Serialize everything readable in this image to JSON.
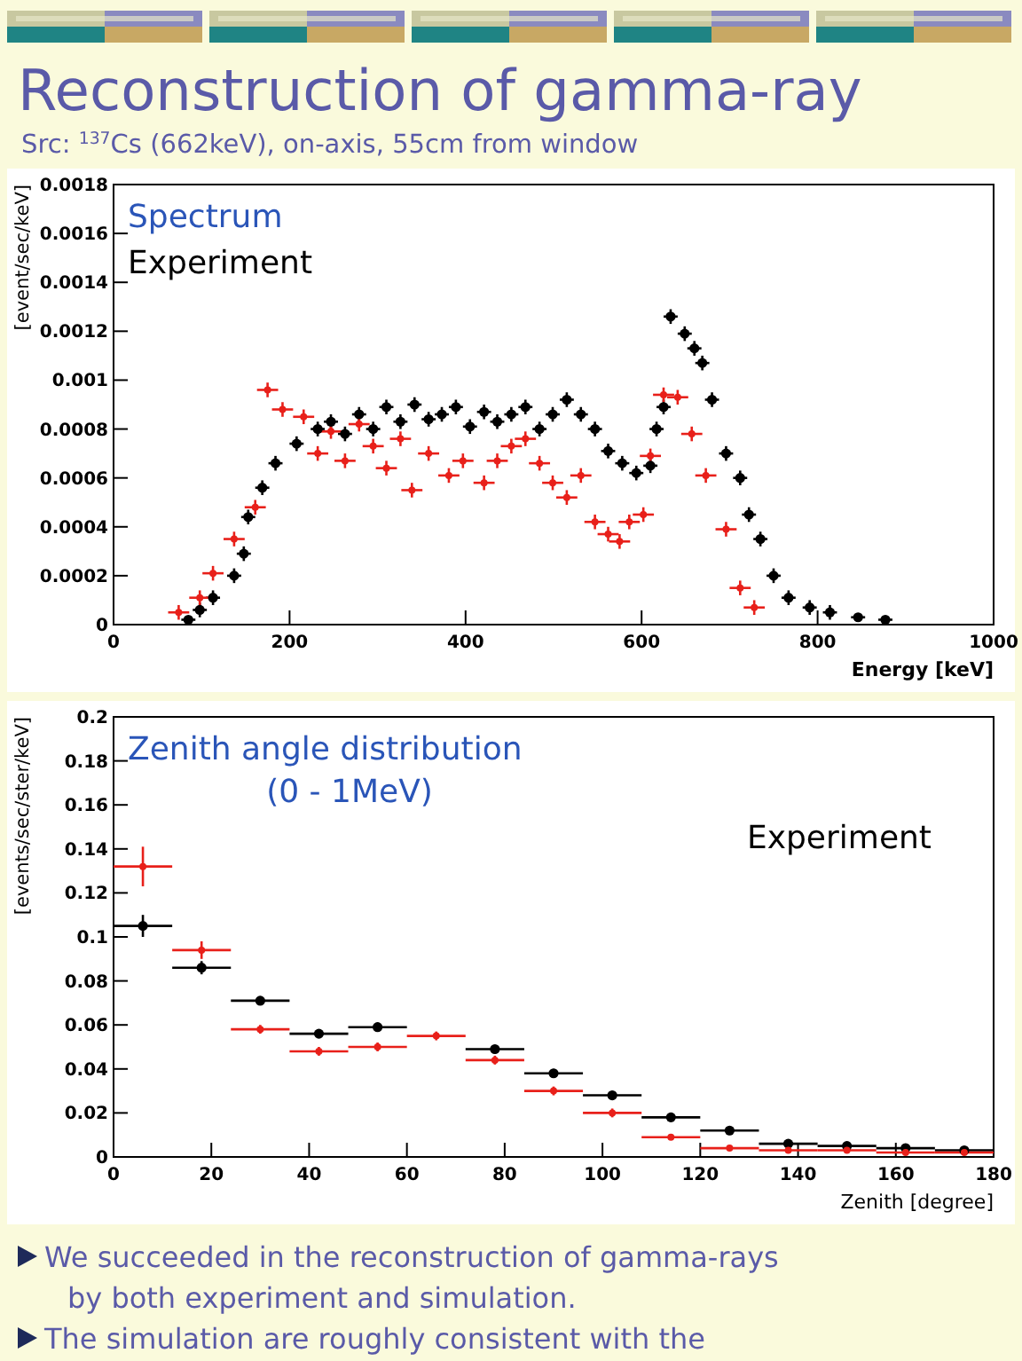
{
  "chart_data": [
    {
      "type": "other",
      "title": "Reconstruction of gamma-ray",
      "subtitle": "Src: $^{137}$Cs (662keV), on-axis, 55cm from window",
      "annotations": [
        "We succeeded in the reconstruction of gamma-rays by both experiment and simulation.",
        "The simulation are roughly consistent with the experiment."
      ]
    },
    {
      "type": "scatter",
      "title": "Spectrum",
      "xlabel": "Energy [keV]",
      "ylabel": "[event/sec/keV]",
      "xlim": [
        0,
        1000
      ],
      "ylim": [
        0,
        0.0018
      ],
      "xticks": [
        0,
        200,
        400,
        600,
        800,
        1000
      ],
      "yticks": [
        0,
        0.0002,
        0.0004,
        0.0006,
        0.0008,
        0.001,
        0.0012,
        0.0014,
        0.0016,
        0.0018
      ],
      "series": [
        {
          "name": "Experiment",
          "color": "#000000",
          "x": [
            85,
            98,
            113,
            137,
            148,
            153,
            169,
            184,
            208,
            232,
            247,
            263,
            279,
            295,
            310,
            326,
            342,
            358,
            373,
            389,
            405,
            421,
            436,
            452,
            468,
            484,
            499,
            515,
            531,
            547,
            562,
            578,
            594,
            610,
            617,
            625,
            633,
            649,
            660,
            669,
            680,
            696,
            712,
            722,
            735,
            750,
            767,
            791,
            814,
            846,
            877
          ],
          "values": [
            2e-05,
            6e-05,
            0.00011,
            0.0002,
            0.00029,
            0.00044,
            0.00056,
            0.00066,
            0.00074,
            0.0008,
            0.00083,
            0.00078,
            0.00086,
            0.0008,
            0.00089,
            0.00083,
            0.0009,
            0.00084,
            0.00086,
            0.00089,
            0.00081,
            0.00087,
            0.00083,
            0.00086,
            0.00089,
            0.0008,
            0.00086,
            0.00092,
            0.00086,
            0.0008,
            0.00071,
            0.00066,
            0.00062,
            0.00065,
            0.0008,
            0.00089,
            0.00126,
            0.00119,
            0.00113,
            0.00107,
            0.00092,
            0.0007,
            0.0006,
            0.00045,
            0.00035,
            0.0002,
            0.00011,
            7e-05,
            5e-05,
            3e-05,
            2e-05
          ],
          "xerrors": [
            8,
            8,
            8,
            8,
            8,
            8,
            8,
            8,
            8,
            8,
            8,
            8,
            8,
            8,
            8,
            8,
            8,
            8,
            8,
            8,
            8,
            8,
            8,
            8,
            8,
            8,
            8,
            8,
            8,
            8,
            8,
            8,
            8,
            8,
            8,
            8,
            8,
            8,
            8,
            8,
            8,
            8,
            8,
            8,
            8,
            8,
            8,
            8,
            8,
            8,
            8
          ],
          "errors": [
            null,
            3e-05,
            3e-05,
            3e-05,
            3e-05,
            3e-05,
            3e-05,
            3e-05,
            3e-05,
            3e-05,
            3e-05,
            3e-05,
            3e-05,
            3e-05,
            3e-05,
            3e-05,
            3e-05,
            3e-05,
            3e-05,
            3e-05,
            3e-05,
            3e-05,
            3e-05,
            3e-05,
            3e-05,
            3e-05,
            3e-05,
            3e-05,
            3e-05,
            3e-05,
            3e-05,
            3e-05,
            3e-05,
            3e-05,
            3e-05,
            3e-05,
            3e-05,
            3e-05,
            3e-05,
            3e-05,
            3e-05,
            3e-05,
            3e-05,
            3e-05,
            3e-05,
            3e-05,
            3e-05,
            3e-05,
            3e-05,
            null,
            null
          ]
        },
        {
          "color": "#e8201a",
          "x": [
            74,
            98,
            113,
            137,
            161,
            175,
            192,
            216,
            232,
            247,
            263,
            279,
            295,
            310,
            326,
            339,
            358,
            381,
            397,
            421,
            436,
            452,
            468,
            484,
            499,
            515,
            531,
            547,
            562,
            575,
            586,
            602,
            610,
            625,
            641,
            657,
            673,
            696,
            712,
            728
          ],
          "values": [
            5e-05,
            0.00011,
            0.00021,
            0.00035,
            0.00048,
            0.00096,
            0.00088,
            0.00085,
            0.0007,
            0.00079,
            0.00067,
            0.00082,
            0.00073,
            0.00064,
            0.00076,
            0.00055,
            0.0007,
            0.00061,
            0.00067,
            0.00058,
            0.00067,
            0.00073,
            0.00076,
            0.00066,
            0.00058,
            0.00052,
            0.00061,
            0.00042,
            0.00037,
            0.00034,
            0.00042,
            0.00045,
            0.00069,
            0.00094,
            0.00093,
            0.00078,
            0.00061,
            0.00039,
            0.00015,
            7e-05
          ],
          "xerrors": [
            12,
            12,
            12,
            12,
            12,
            12,
            12,
            12,
            12,
            12,
            12,
            12,
            12,
            12,
            12,
            12,
            12,
            12,
            12,
            12,
            12,
            12,
            12,
            12,
            12,
            12,
            12,
            12,
            12,
            12,
            12,
            12,
            12,
            12,
            12,
            12,
            12,
            12,
            12,
            12
          ],
          "errors": [
            3e-05,
            3e-05,
            3e-05,
            3e-05,
            3e-05,
            3e-05,
            3e-05,
            3e-05,
            3e-05,
            3e-05,
            3e-05,
            3e-05,
            3e-05,
            3e-05,
            3e-05,
            3e-05,
            3e-05,
            3e-05,
            3e-05,
            3e-05,
            3e-05,
            3e-05,
            3e-05,
            3e-05,
            3e-05,
            3e-05,
            3e-05,
            3e-05,
            3e-05,
            3e-05,
            3e-05,
            3e-05,
            3e-05,
            3e-05,
            3e-05,
            3e-05,
            3e-05,
            3e-05,
            3e-05,
            3e-05
          ]
        }
      ]
    },
    {
      "type": "scatter",
      "title": "Zenith angle distribution",
      "subtitle": "(0 - 1MeV)",
      "xlabel": "Zenith [degree]",
      "ylabel": "[events/sec/ster/keV]",
      "xlim": [
        0,
        180
      ],
      "ylim": [
        0,
        0.2
      ],
      "xticks": [
        0,
        20,
        40,
        60,
        80,
        100,
        120,
        140,
        160,
        180
      ],
      "yticks": [
        0,
        0.02,
        0.04,
        0.06,
        0.08,
        0.1,
        0.12,
        0.14,
        0.16,
        0.18,
        0.2
      ],
      "x": [
        6,
        18,
        30,
        42,
        54,
        66,
        78,
        90,
        102,
        114,
        126,
        138,
        150,
        162,
        174
      ],
      "series": [
        {
          "name": "Experiment",
          "color": "#000000",
          "values": [
            0.105,
            0.086,
            0.071,
            0.056,
            0.059,
            null,
            0.049,
            0.038,
            0.028,
            0.018,
            0.012,
            0.006,
            0.005,
            0.004,
            0.003
          ],
          "xerrors": [
            6,
            6,
            6,
            6,
            6,
            null,
            6,
            6,
            6,
            6,
            6,
            6,
            6,
            6,
            6
          ],
          "errors": [
            0.005,
            0.003,
            0.002,
            0.002,
            0.002,
            null,
            0.002,
            0.002,
            0.002,
            0.002,
            0.002,
            0.001,
            0.001,
            0.001,
            0.001
          ]
        },
        {
          "color": "#e8201a",
          "values": [
            0.132,
            0.094,
            0.058,
            0.048,
            0.05,
            0.055,
            0.044,
            0.03,
            0.02,
            0.009,
            0.004,
            0.003,
            0.003,
            0.002,
            0.002
          ],
          "xerrors": [
            6,
            6,
            6,
            6,
            6,
            6,
            6,
            6,
            6,
            6,
            6,
            6,
            6,
            6,
            6
          ],
          "errors": [
            0.009,
            0.004,
            0.002,
            0.002,
            0.002,
            0.002,
            0.002,
            0.002,
            0.002,
            0.001,
            0.001,
            0.001,
            0.001,
            0.001,
            0.001
          ]
        }
      ]
    }
  ]
}
